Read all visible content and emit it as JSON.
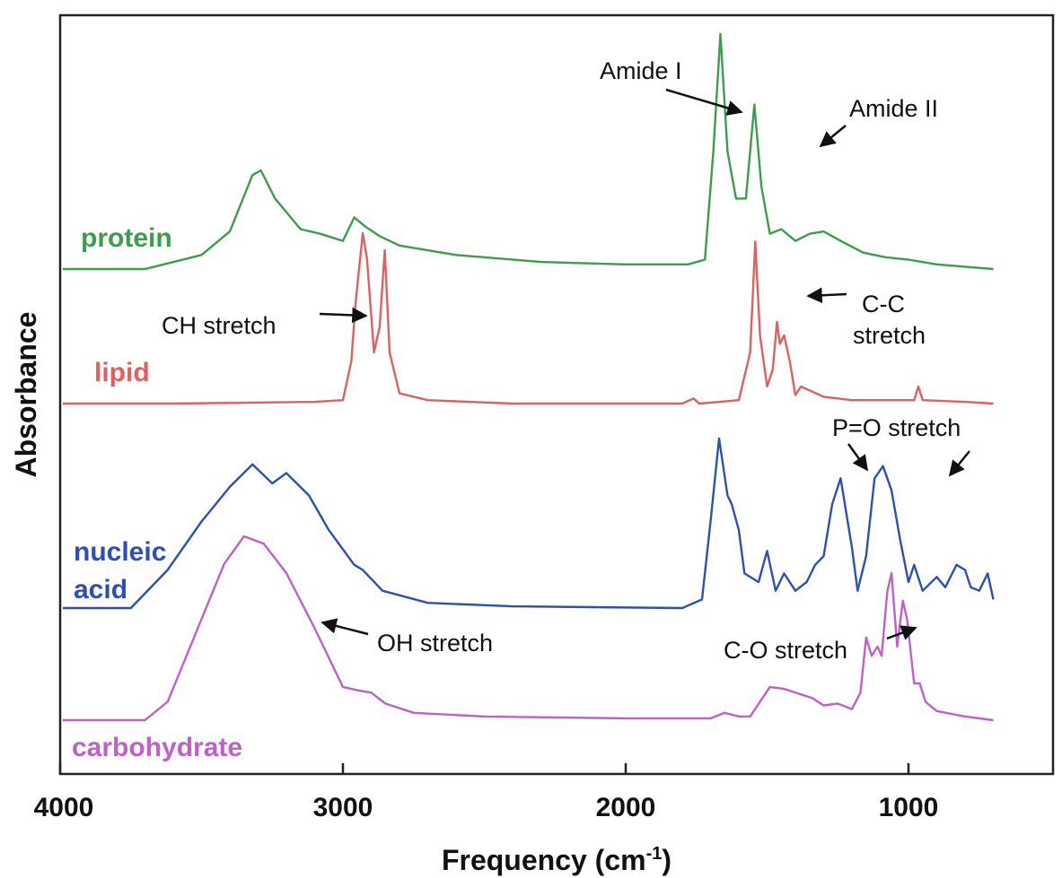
{
  "chart_data": {
    "type": "line",
    "xlabel": "Frequency (cm",
    "xlabel_sup": "-1",
    "xlabel_end": ")",
    "ylabel": "Absorbance",
    "xlim": [
      4000,
      700
    ],
    "x_reversed": true,
    "xticks": [
      4000,
      3000,
      2000,
      1000
    ],
    "xtick_labels": [
      "4000",
      "3000",
      "2000",
      "1000"
    ],
    "grid": false,
    "series": [
      {
        "name": "protein",
        "color": "#3a9e4a",
        "baseline": 0.0,
        "points": [
          [
            4000,
            0.0
          ],
          [
            3700,
            0.0
          ],
          [
            3500,
            0.06
          ],
          [
            3400,
            0.16
          ],
          [
            3320,
            0.4
          ],
          [
            3290,
            0.42
          ],
          [
            3240,
            0.3
          ],
          [
            3150,
            0.17
          ],
          [
            3080,
            0.15
          ],
          [
            3000,
            0.12
          ],
          [
            2960,
            0.22
          ],
          [
            2920,
            0.18
          ],
          [
            2870,
            0.14
          ],
          [
            2800,
            0.1
          ],
          [
            2600,
            0.06
          ],
          [
            2300,
            0.03
          ],
          [
            2000,
            0.02
          ],
          [
            1780,
            0.02
          ],
          [
            1720,
            0.04
          ],
          [
            1690,
            0.5
          ],
          [
            1665,
            1.0
          ],
          [
            1640,
            0.5
          ],
          [
            1610,
            0.3
          ],
          [
            1575,
            0.3
          ],
          [
            1545,
            0.7
          ],
          [
            1520,
            0.35
          ],
          [
            1490,
            0.15
          ],
          [
            1450,
            0.17
          ],
          [
            1400,
            0.12
          ],
          [
            1350,
            0.15
          ],
          [
            1300,
            0.16
          ],
          [
            1240,
            0.12
          ],
          [
            1160,
            0.07
          ],
          [
            1080,
            0.05
          ],
          [
            1000,
            0.04
          ],
          [
            900,
            0.02
          ],
          [
            800,
            0.01
          ],
          [
            700,
            0.0
          ]
        ]
      },
      {
        "name": "lipid",
        "color": "#e06060",
        "baseline": 0.0,
        "points": [
          [
            4000,
            0.0
          ],
          [
            3600,
            0.0
          ],
          [
            3100,
            0.01
          ],
          [
            3000,
            0.02
          ],
          [
            2970,
            0.25
          ],
          [
            2956,
            0.58
          ],
          [
            2930,
            1.0
          ],
          [
            2915,
            0.85
          ],
          [
            2890,
            0.3
          ],
          [
            2870,
            0.45
          ],
          [
            2852,
            0.9
          ],
          [
            2835,
            0.3
          ],
          [
            2800,
            0.06
          ],
          [
            2700,
            0.02
          ],
          [
            2400,
            0.0
          ],
          [
            1800,
            0.0
          ],
          [
            1760,
            0.03
          ],
          [
            1740,
            0.0
          ],
          [
            1600,
            0.02
          ],
          [
            1560,
            0.3
          ],
          [
            1542,
            0.95
          ],
          [
            1525,
            0.4
          ],
          [
            1500,
            0.1
          ],
          [
            1480,
            0.2
          ],
          [
            1465,
            0.48
          ],
          [
            1455,
            0.35
          ],
          [
            1440,
            0.4
          ],
          [
            1420,
            0.25
          ],
          [
            1400,
            0.05
          ],
          [
            1380,
            0.1
          ],
          [
            1300,
            0.04
          ],
          [
            1200,
            0.02
          ],
          [
            1100,
            0.02
          ],
          [
            980,
            0.02
          ],
          [
            965,
            0.1
          ],
          [
            950,
            0.02
          ],
          [
            800,
            0.01
          ],
          [
            700,
            0.0
          ]
        ]
      },
      {
        "name": "nucleic acid",
        "color": "#2d4fb8",
        "baseline": 0.0,
        "points": [
          [
            4000,
            0.0
          ],
          [
            3750,
            0.0
          ],
          [
            3620,
            0.22
          ],
          [
            3500,
            0.5
          ],
          [
            3400,
            0.7
          ],
          [
            3320,
            0.83
          ],
          [
            3250,
            0.72
          ],
          [
            3200,
            0.78
          ],
          [
            3120,
            0.65
          ],
          [
            3050,
            0.45
          ],
          [
            2960,
            0.25
          ],
          [
            2930,
            0.22
          ],
          [
            2860,
            0.1
          ],
          [
            2700,
            0.03
          ],
          [
            2400,
            0.01
          ],
          [
            1800,
            0.0
          ],
          [
            1730,
            0.05
          ],
          [
            1700,
            0.5
          ],
          [
            1670,
            0.98
          ],
          [
            1640,
            0.65
          ],
          [
            1625,
            0.6
          ],
          [
            1600,
            0.45
          ],
          [
            1580,
            0.2
          ],
          [
            1530,
            0.15
          ],
          [
            1500,
            0.33
          ],
          [
            1470,
            0.1
          ],
          [
            1440,
            0.2
          ],
          [
            1400,
            0.1
          ],
          [
            1360,
            0.15
          ],
          [
            1330,
            0.25
          ],
          [
            1300,
            0.3
          ],
          [
            1270,
            0.6
          ],
          [
            1240,
            0.75
          ],
          [
            1200,
            0.35
          ],
          [
            1180,
            0.1
          ],
          [
            1150,
            0.3
          ],
          [
            1120,
            0.75
          ],
          [
            1090,
            0.82
          ],
          [
            1060,
            0.68
          ],
          [
            1030,
            0.4
          ],
          [
            1000,
            0.15
          ],
          [
            980,
            0.25
          ],
          [
            950,
            0.1
          ],
          [
            900,
            0.18
          ],
          [
            870,
            0.12
          ],
          [
            830,
            0.25
          ],
          [
            800,
            0.22
          ],
          [
            780,
            0.12
          ],
          [
            750,
            0.1
          ],
          [
            720,
            0.2
          ],
          [
            700,
            0.05
          ]
        ]
      },
      {
        "name": "carbohydrate",
        "color": "#c060c8",
        "baseline": 0.0,
        "points": [
          [
            4000,
            0.0
          ],
          [
            3700,
            0.0
          ],
          [
            3620,
            0.1
          ],
          [
            3500,
            0.55
          ],
          [
            3420,
            0.85
          ],
          [
            3350,
            1.0
          ],
          [
            3280,
            0.96
          ],
          [
            3200,
            0.8
          ],
          [
            3100,
            0.5
          ],
          [
            3000,
            0.18
          ],
          [
            2940,
            0.16
          ],
          [
            2900,
            0.15
          ],
          [
            2850,
            0.09
          ],
          [
            2750,
            0.04
          ],
          [
            2500,
            0.02
          ],
          [
            2000,
            0.01
          ],
          [
            1700,
            0.01
          ],
          [
            1650,
            0.04
          ],
          [
            1600,
            0.02
          ],
          [
            1560,
            0.02
          ],
          [
            1490,
            0.18
          ],
          [
            1440,
            0.17
          ],
          [
            1380,
            0.14
          ],
          [
            1340,
            0.12
          ],
          [
            1300,
            0.08
          ],
          [
            1250,
            0.09
          ],
          [
            1200,
            0.06
          ],
          [
            1170,
            0.15
          ],
          [
            1150,
            0.45
          ],
          [
            1130,
            0.35
          ],
          [
            1110,
            0.4
          ],
          [
            1095,
            0.35
          ],
          [
            1075,
            0.7
          ],
          [
            1060,
            0.8
          ],
          [
            1040,
            0.4
          ],
          [
            1020,
            0.65
          ],
          [
            1005,
            0.55
          ],
          [
            980,
            0.2
          ],
          [
            960,
            0.2
          ],
          [
            940,
            0.1
          ],
          [
            900,
            0.05
          ],
          [
            800,
            0.02
          ],
          [
            700,
            0.0
          ]
        ]
      }
    ],
    "annotations": [
      {
        "text": "Amide I"
      },
      {
        "text": "Amide II"
      },
      {
        "text": "CH stretch"
      },
      {
        "text": "C-C"
      },
      {
        "text": "stretch"
      },
      {
        "text": "P=O stretch"
      },
      {
        "text": "OH stretch"
      },
      {
        "text": "C-O stretch"
      }
    ],
    "series_labels": [
      "protein",
      "lipid",
      "nucleic",
      "acid",
      "carbohydrate"
    ]
  }
}
